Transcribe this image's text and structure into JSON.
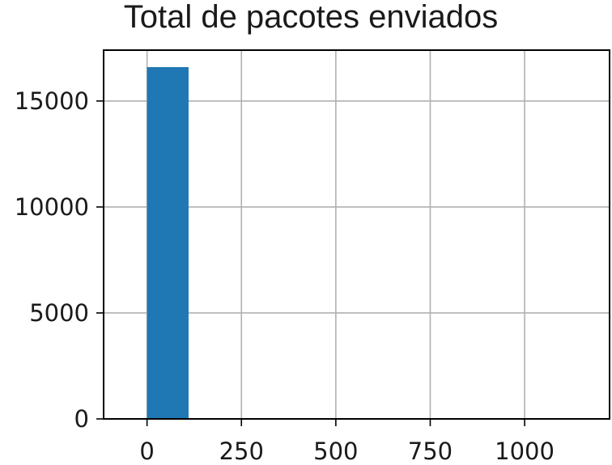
{
  "chart_data": {
    "type": "bar",
    "title": "Total de pacotes enviados",
    "xlabel": "",
    "ylabel": "",
    "bins": [
      {
        "x0": 0,
        "x1": 110,
        "count": 16600
      }
    ],
    "xlim": [
      -115,
      1225
    ],
    "ylim": [
      0,
      17400
    ],
    "xticks": [
      0,
      250,
      500,
      750,
      1000
    ],
    "xtick_labels": [
      "0",
      "250",
      "500",
      "750",
      "1000"
    ],
    "yticks": [
      0,
      5000,
      10000,
      15000
    ],
    "ytick_labels": [
      "0",
      "5000",
      "10000",
      "15000"
    ],
    "grid": true,
    "legend": "none",
    "colors": {
      "bar": "#1f77b4",
      "grid": "#b0b0b0",
      "axes": "#000000",
      "background": "#ffffff"
    }
  }
}
